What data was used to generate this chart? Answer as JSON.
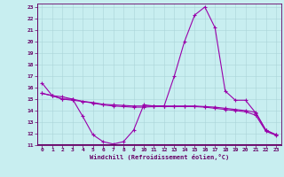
{
  "xlabel": "Windchill (Refroidissement éolien,°C)",
  "background_color": "#c8eef0",
  "line_color": "#9900aa",
  "grid_color": "#aad4d8",
  "spine_color": "#660066",
  "tick_color": "#660066",
  "xlabel_color": "#660066",
  "xlim_min": -0.5,
  "xlim_max": 23.5,
  "ylim_min": 11,
  "ylim_max": 23.3,
  "yticks": [
    11,
    12,
    13,
    14,
    15,
    16,
    17,
    18,
    19,
    20,
    21,
    22,
    23
  ],
  "xticks": [
    0,
    1,
    2,
    3,
    4,
    5,
    6,
    7,
    8,
    9,
    10,
    11,
    12,
    13,
    14,
    15,
    16,
    17,
    18,
    19,
    20,
    21,
    22,
    23
  ],
  "series": [
    [
      16.4,
      15.3,
      15.2,
      15.0,
      13.5,
      11.9,
      11.3,
      11.1,
      11.3,
      12.3,
      14.5,
      14.4,
      14.4,
      17.0,
      20.0,
      22.3,
      23.0,
      21.2,
      15.7,
      14.9,
      14.9,
      13.8,
      12.3,
      11.9
    ],
    [
      15.5,
      15.3,
      15.0,
      15.0,
      14.8,
      14.7,
      14.55,
      14.5,
      14.45,
      14.4,
      14.4,
      14.4,
      14.4,
      14.4,
      14.4,
      14.4,
      14.35,
      14.3,
      14.2,
      14.1,
      14.0,
      13.85,
      12.3,
      11.9
    ],
    [
      15.5,
      15.3,
      15.0,
      14.9,
      14.8,
      14.65,
      14.5,
      14.4,
      14.35,
      14.3,
      14.3,
      14.35,
      14.35,
      14.35,
      14.35,
      14.35,
      14.3,
      14.2,
      14.1,
      14.0,
      13.9,
      13.6,
      12.2,
      11.85
    ]
  ]
}
